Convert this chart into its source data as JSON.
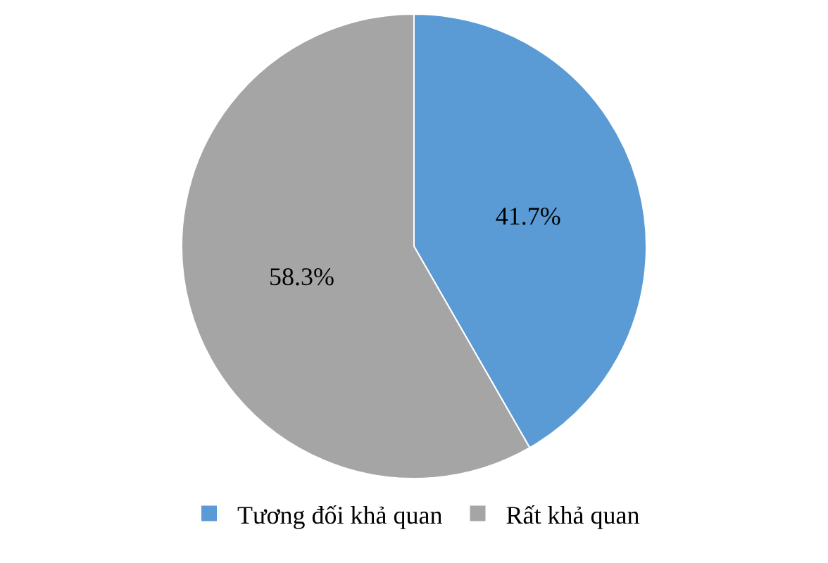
{
  "chart_data": {
    "type": "pie",
    "categories": [
      "Tương đối khả quan",
      "Rất khả quan"
    ],
    "values": [
      41.7,
      58.3
    ],
    "colors": [
      "#5b9bd5",
      "#a5a5a5"
    ],
    "value_labels": [
      "41.7%",
      "58.3%"
    ],
    "legend": "bottom"
  }
}
